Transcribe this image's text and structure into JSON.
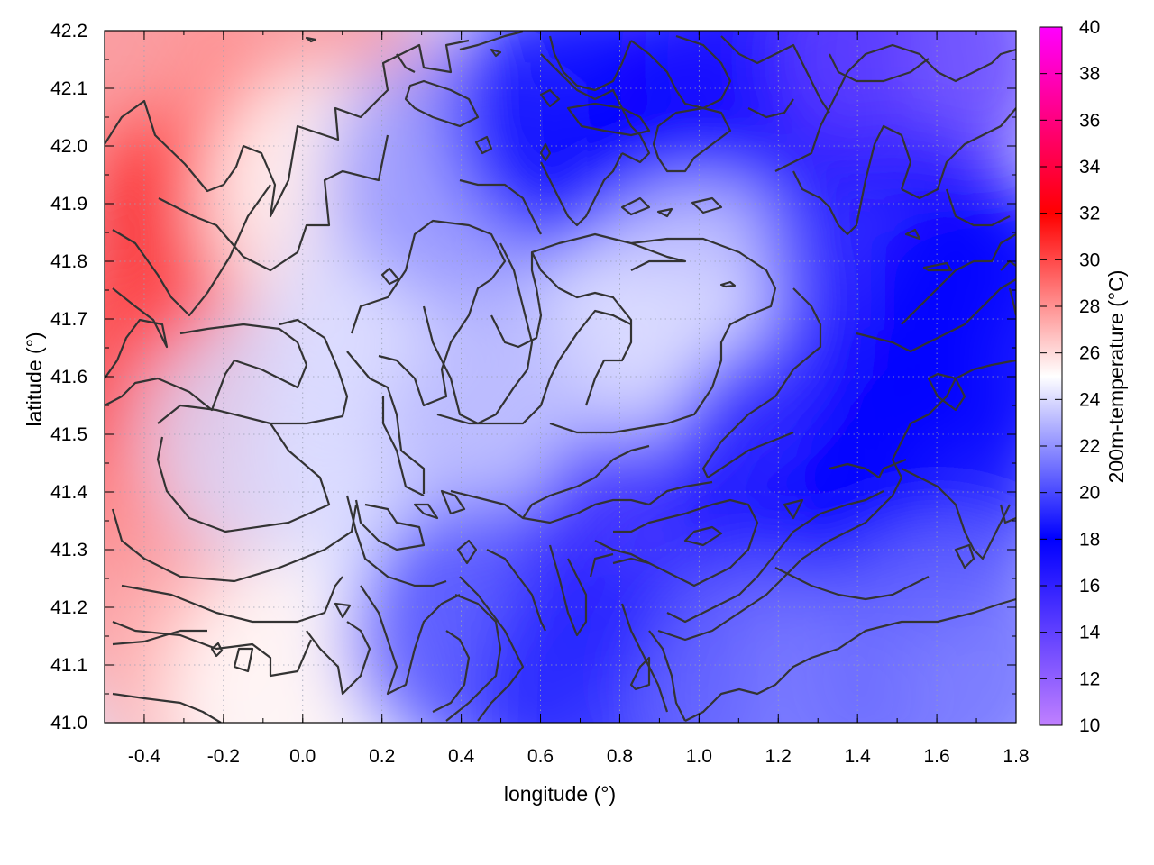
{
  "chart_data": {
    "type": "heatmap",
    "xlabel": "longitude (°)",
    "ylabel": "latitude (°)",
    "colorbar_label": "200m-temperature (°C)",
    "xlim": [
      -0.5,
      1.8
    ],
    "ylim": [
      41.0,
      42.2
    ],
    "x_ticks": [
      "-0.4",
      "-0.2",
      "0.0",
      "0.2",
      "0.4",
      "0.6",
      "0.8",
      "1.0",
      "1.2",
      "1.4",
      "1.6",
      "1.8"
    ],
    "y_ticks": [
      "41.0",
      "41.1",
      "41.2",
      "41.3",
      "41.4",
      "41.5",
      "41.6",
      "41.7",
      "41.8",
      "41.9",
      "42.0",
      "42.1",
      "42.2"
    ],
    "colorbar_range": [
      10,
      40
    ],
    "colorbar_ticks": [
      "10",
      "12",
      "14",
      "16",
      "18",
      "20",
      "22",
      "24",
      "26",
      "28",
      "30",
      "32",
      "34",
      "36",
      "38",
      "40"
    ],
    "colormap": [
      {
        "value": 10,
        "color": "#c080ff"
      },
      {
        "value": 18,
        "color": "#0000ff"
      },
      {
        "value": 25,
        "color": "#ffffff"
      },
      {
        "value": 32,
        "color": "#ff0000"
      },
      {
        "value": 40,
        "color": "#ff00ff"
      }
    ],
    "grid": "dotted",
    "field_samples": [
      {
        "lon": -0.45,
        "lat": 42.15,
        "t": 28
      },
      {
        "lon": -0.25,
        "lat": 41.85,
        "t": 31
      },
      {
        "lon": -0.45,
        "lat": 41.55,
        "t": 30
      },
      {
        "lon": -0.35,
        "lat": 41.25,
        "t": 28
      },
      {
        "lon": -0.2,
        "lat": 41.05,
        "t": 27
      },
      {
        "lon": 0.0,
        "lat": 42.1,
        "t": 28
      },
      {
        "lon": 0.1,
        "lat": 41.9,
        "t": 25
      },
      {
        "lon": -0.05,
        "lat": 41.5,
        "t": 24
      },
      {
        "lon": 0.0,
        "lat": 41.05,
        "t": 25
      },
      {
        "lon": 0.25,
        "lat": 41.7,
        "t": 24
      },
      {
        "lon": 0.4,
        "lat": 41.95,
        "t": 22
      },
      {
        "lon": 0.55,
        "lat": 41.5,
        "t": 23
      },
      {
        "lon": 0.45,
        "lat": 41.15,
        "t": 20
      },
      {
        "lon": 0.7,
        "lat": 42.05,
        "t": 18
      },
      {
        "lon": 0.9,
        "lat": 41.3,
        "t": 16
      },
      {
        "lon": 0.8,
        "lat": 41.05,
        "t": 19
      },
      {
        "lon": 1.0,
        "lat": 42.0,
        "t": 18
      },
      {
        "lon": 1.0,
        "lat": 41.7,
        "t": 24
      },
      {
        "lon": 1.2,
        "lat": 42.15,
        "t": 17
      },
      {
        "lon": 1.25,
        "lat": 41.45,
        "t": 17
      },
      {
        "lon": 1.2,
        "lat": 41.05,
        "t": 21
      },
      {
        "lon": 1.55,
        "lat": 42.15,
        "t": 14
      },
      {
        "lon": 1.5,
        "lat": 41.8,
        "t": 17
      },
      {
        "lon": 1.55,
        "lat": 41.4,
        "t": 18
      },
      {
        "lon": 1.6,
        "lat": 41.1,
        "t": 21
      },
      {
        "lon": 1.75,
        "lat": 41.7,
        "t": 18
      }
    ]
  }
}
